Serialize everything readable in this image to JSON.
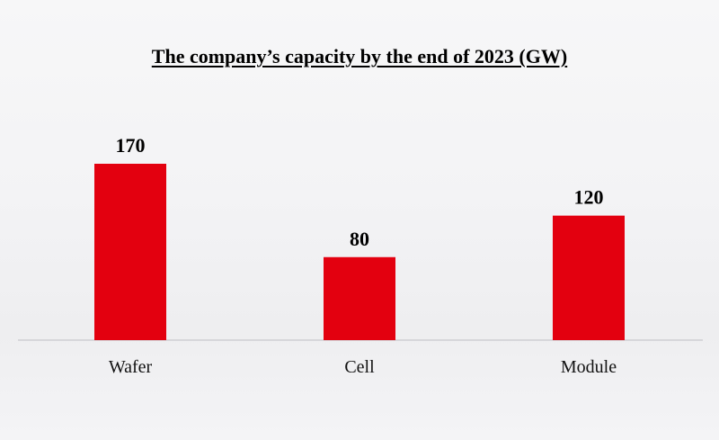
{
  "chart_data": {
    "type": "bar",
    "title": "The company’s capacity by the end of 2023 (GW)",
    "categories": [
      "Wafer",
      "Cell",
      "Module"
    ],
    "values": [
      170,
      80,
      120
    ],
    "data_labels": [
      "170",
      "80",
      "120"
    ],
    "xlabel": "",
    "ylabel": "",
    "ylim": [
      0,
      170
    ],
    "grid": false,
    "legend": "none",
    "bar_color": "#e3000f"
  }
}
